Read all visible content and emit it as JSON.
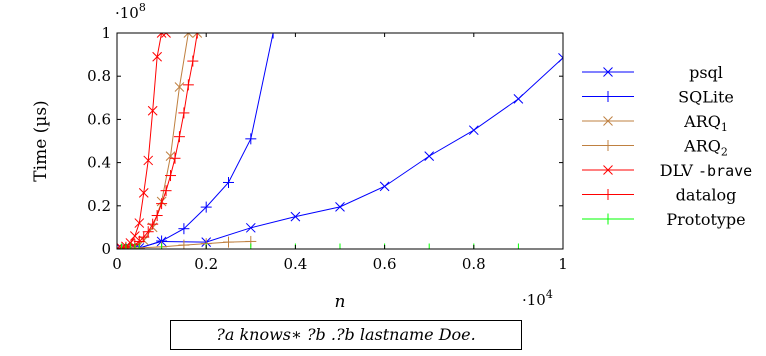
{
  "chart_data": {
    "type": "line",
    "xlabel": "n",
    "ylabel": "Time (µs)",
    "x_scale_label": "·10",
    "x_scale_exp": "4",
    "y_scale_label": "·10",
    "y_scale_exp": "8",
    "xlim": [
      0,
      10000
    ],
    "ylim": [
      0,
      100000000
    ],
    "xticks": [
      0,
      2000,
      4000,
      6000,
      8000,
      10000
    ],
    "xtick_labels": [
      "0",
      "0.2",
      "0.4",
      "0.6",
      "0.8",
      "1"
    ],
    "yticks": [
      0,
      20000000,
      40000000,
      60000000,
      80000000,
      100000000
    ],
    "ytick_labels": [
      "0",
      "0.2",
      "0.4",
      "0.6",
      "0.8",
      "1"
    ],
    "grid": false,
    "legend_position": "right",
    "series": [
      {
        "name": "psql",
        "color": "#0000ff",
        "marker": "x",
        "x": [
          0,
          100,
          200,
          300,
          400,
          500,
          1000,
          2000,
          3000,
          4000,
          5000,
          6000,
          7000,
          8000,
          9000,
          10000
        ],
        "y": [
          0,
          100000,
          200000,
          300000,
          400000,
          500000,
          3500000,
          3200000,
          9800000,
          15000000,
          19500000,
          29000000,
          43000000,
          55000000,
          69500000,
          88500000
        ]
      },
      {
        "name": "SQLite",
        "color": "#0000ff",
        "marker": "+",
        "x": [
          0,
          500,
          1000,
          1500,
          2000,
          2500,
          3000,
          3500
        ],
        "y": [
          0,
          400000,
          3700000,
          9400000,
          19400000,
          30800000,
          51000000,
          100000000
        ]
      },
      {
        "name": "ARQ",
        "name_sub": "1",
        "color": "#bf8040",
        "marker": "x",
        "x": [
          0,
          200,
          400,
          600,
          800,
          1000,
          1200,
          1400,
          1600,
          1800
        ],
        "y": [
          0,
          300000,
          1200000,
          4000000,
          10000000,
          22000000,
          43000000,
          75000000,
          100000000,
          100000000
        ]
      },
      {
        "name": "ARQ",
        "name_sub": "2",
        "color": "#bf8040",
        "marker": "+",
        "x": [
          0,
          500,
          1000,
          1500,
          2000,
          2500,
          3000
        ],
        "y": [
          0,
          500000,
          1000000,
          1800000,
          2500000,
          3200000,
          3500000
        ]
      },
      {
        "name": "DLV -brave",
        "name_main": "DLV ",
        "name_mono": "-brave",
        "color": "#ff0000",
        "marker": "x",
        "x": [
          0,
          100,
          200,
          300,
          400,
          500,
          600,
          700,
          800,
          900,
          1000,
          1100
        ],
        "y": [
          0,
          500000,
          1200000,
          2800000,
          6000000,
          12000000,
          26000000,
          41000000,
          64000000,
          89000000,
          100000000,
          100000000
        ]
      },
      {
        "name": "datalog",
        "color": "#ff0000",
        "marker": "+",
        "x": [
          0,
          200,
          400,
          500,
          600,
          700,
          800,
          900,
          1000,
          1100,
          1200,
          1300,
          1400,
          1500,
          1600,
          1700,
          1800
        ],
        "y": [
          0,
          800000,
          2000000,
          3500000,
          5500000,
          8000000,
          11500000,
          15500000,
          21000000,
          27000000,
          34000000,
          42000000,
          52000000,
          63000000,
          76000000,
          87000000,
          100000000
        ]
      },
      {
        "name": "Prototype",
        "color": "#00ff00",
        "marker": "+",
        "x": [
          0,
          100,
          200,
          300,
          400,
          500,
          1000,
          2000,
          3000,
          4000,
          5000,
          6000,
          7000,
          8000,
          9000,
          10000
        ],
        "y": [
          0,
          0,
          0,
          0,
          0,
          0,
          0,
          0,
          0,
          0,
          0,
          0,
          0,
          0,
          0,
          0
        ]
      }
    ]
  },
  "query": "?a knows∗ ?b .?b lastname Doe."
}
